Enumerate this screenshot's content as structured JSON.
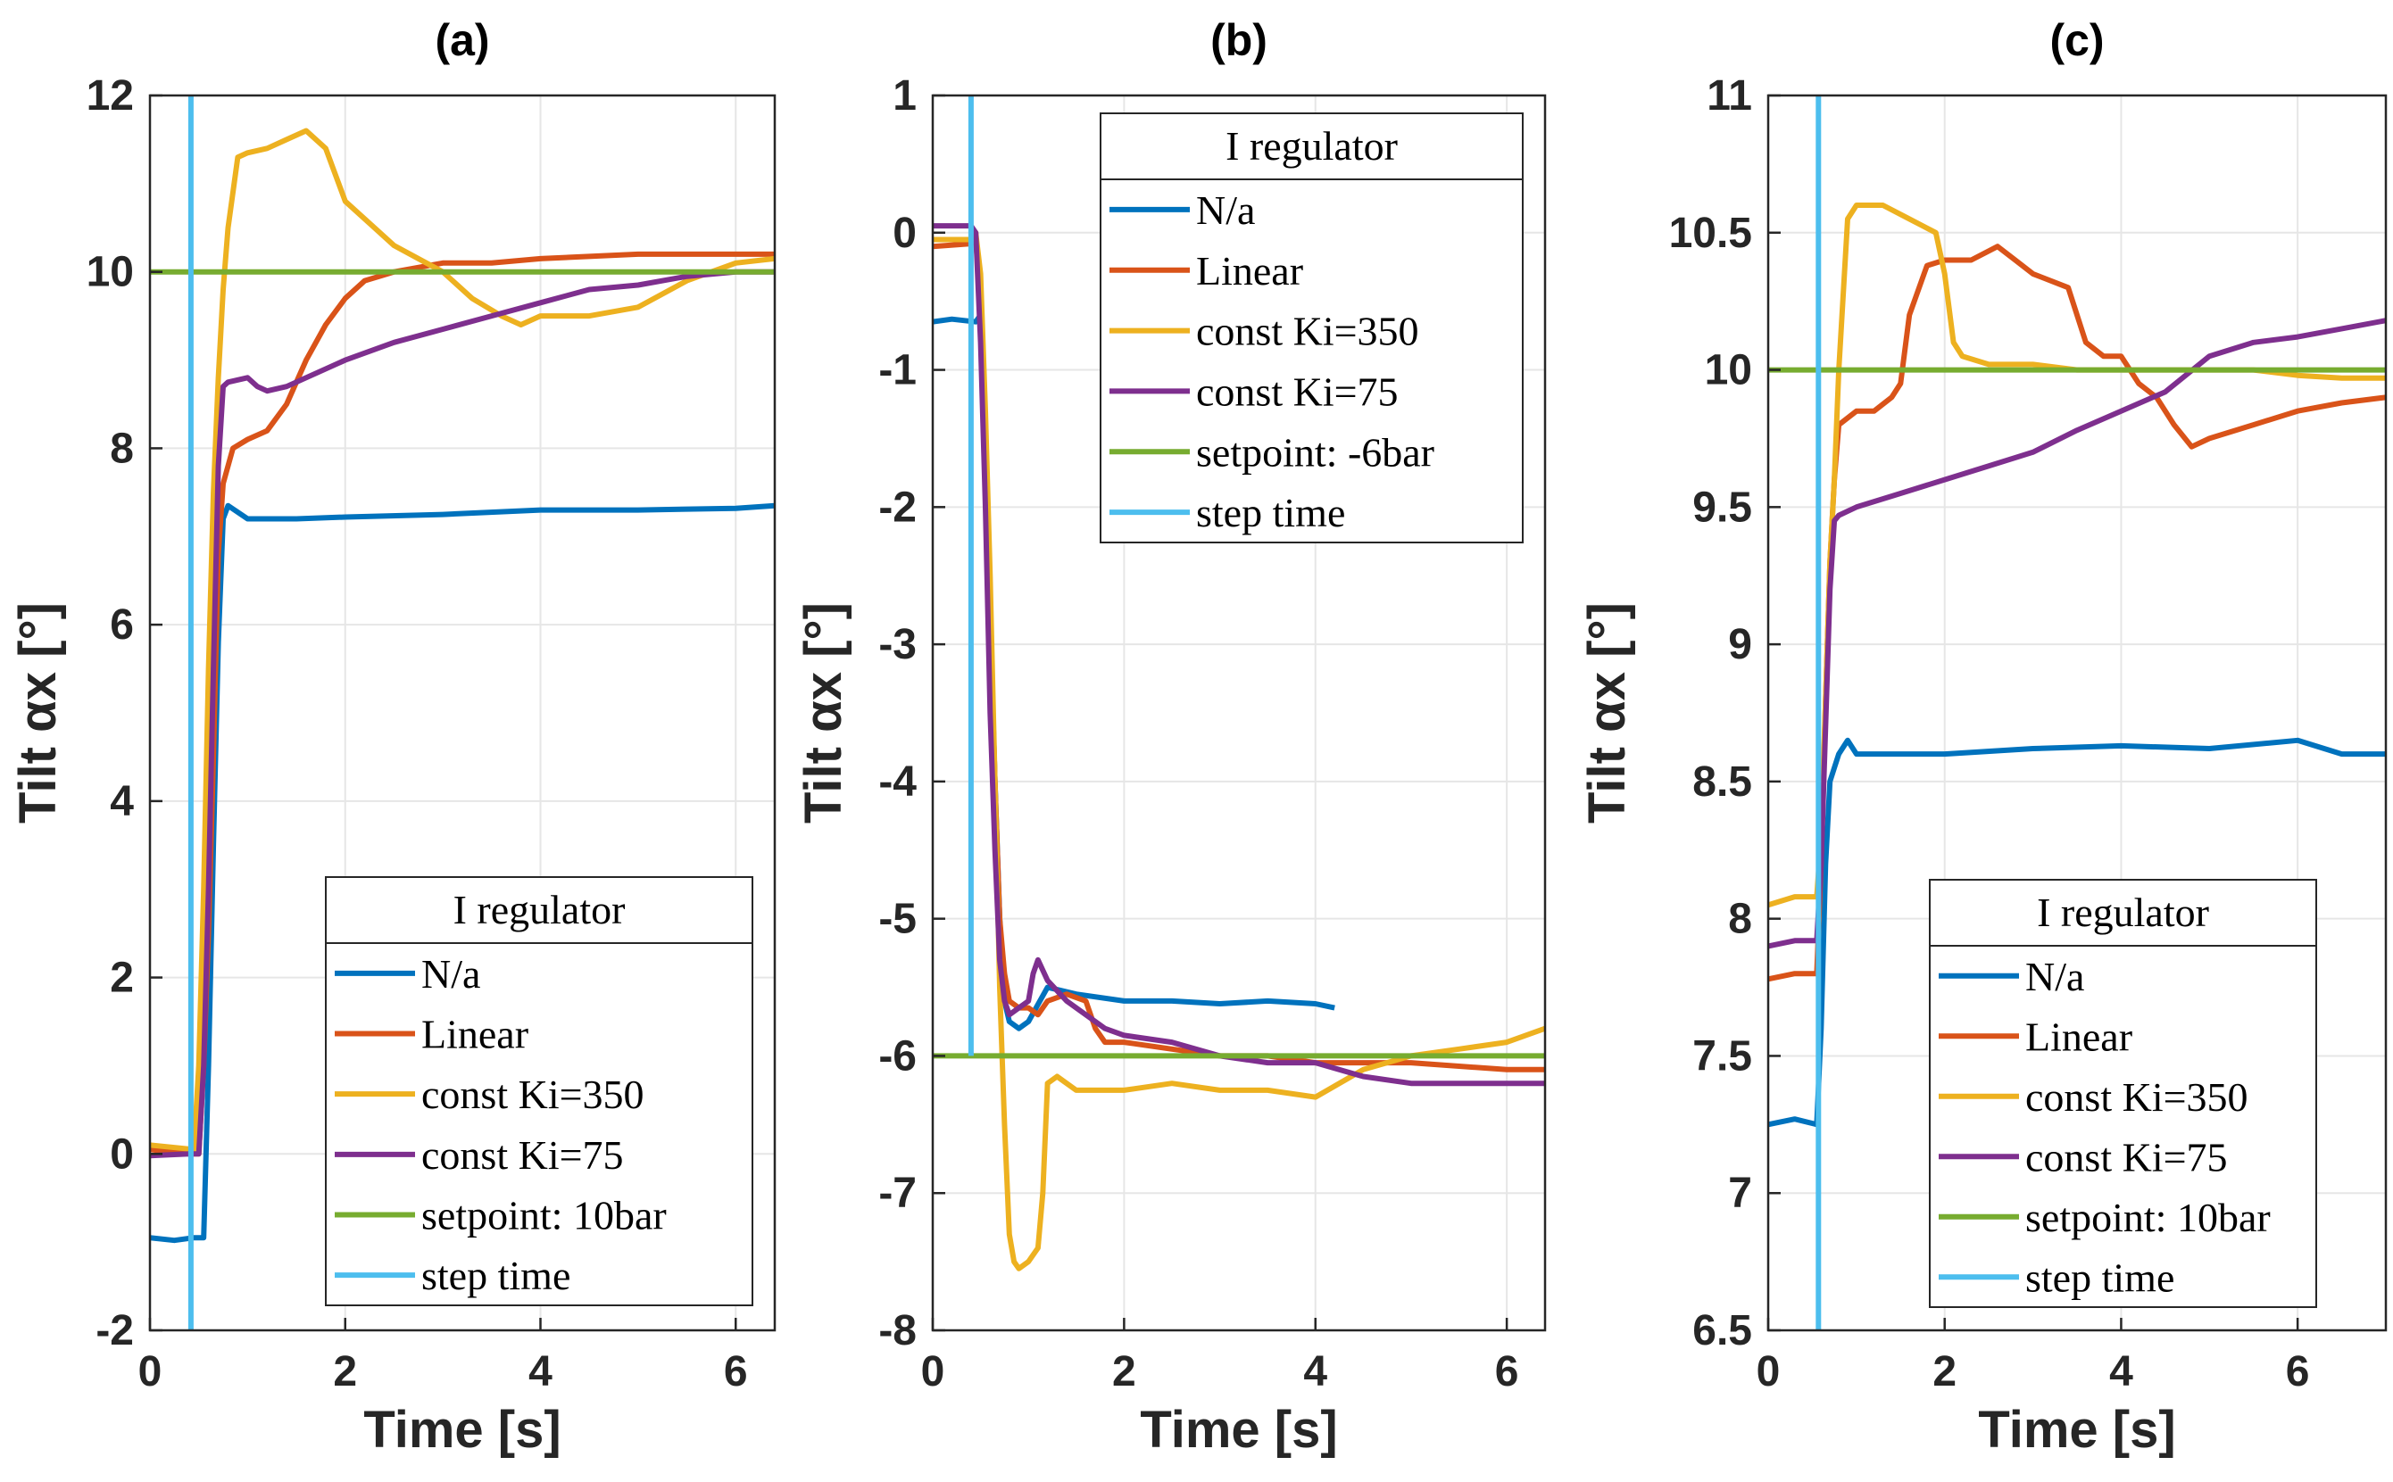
{
  "figure": {
    "colors": {
      "na": "#0072BD",
      "linear": "#D95319",
      "ki350": "#EDB120",
      "ki75": "#7E2F8E",
      "setpoint": "#77AC30",
      "step": "#4DBEEE",
      "grid": "#e6e6e6",
      "axis": "#262626"
    }
  },
  "chart_data": [
    {
      "type": "line",
      "title": "(a)",
      "xlabel": "Time [s]",
      "ylabel": "Tilt αx [°]",
      "xlim": [
        0,
        6.4
      ],
      "ylim": [
        -2,
        12
      ],
      "xticks": [
        0,
        2,
        4,
        6
      ],
      "yticks": [
        -2,
        0,
        2,
        4,
        6,
        8,
        10,
        12
      ],
      "xtick_labels": [
        "0",
        "2",
        "4",
        "6"
      ],
      "ytick_labels": [
        "-2",
        "0",
        "2",
        "4",
        "6",
        "8",
        "10",
        "12"
      ],
      "grid": true,
      "legend": {
        "title": "I regulator",
        "location": "bottom-right",
        "entries": [
          "N/a",
          "Linear",
          "const Ki=350",
          "const Ki=75",
          "setpoint: 10bar",
          "step time"
        ]
      },
      "series": [
        {
          "name": "N/a",
          "color_key": "na",
          "x": [
            0,
            0.25,
            0.45,
            0.55,
            0.6,
            0.65,
            0.7,
            0.75,
            0.8,
            1.0,
            1.5,
            2.0,
            3.0,
            4.0,
            5.0,
            6.0,
            6.4
          ],
          "y": [
            -0.95,
            -0.98,
            -0.95,
            -0.95,
            1.0,
            3.5,
            5.8,
            7.2,
            7.35,
            7.2,
            7.2,
            7.22,
            7.25,
            7.3,
            7.3,
            7.32,
            7.35
          ]
        },
        {
          "name": "Linear",
          "color_key": "linear",
          "x": [
            0,
            0.4,
            0.5,
            0.55,
            0.6,
            0.65,
            0.7,
            0.75,
            0.85,
            1.0,
            1.2,
            1.4,
            1.6,
            1.8,
            2.0,
            2.2,
            2.5,
            3.0,
            3.5,
            4.0,
            5.0,
            6.0,
            6.4
          ],
          "y": [
            0.05,
            0.0,
            0.0,
            1.0,
            2.5,
            4.5,
            6.8,
            7.6,
            8.0,
            8.1,
            8.2,
            8.5,
            9.0,
            9.4,
            9.7,
            9.9,
            10.0,
            10.1,
            10.1,
            10.15,
            10.2,
            10.2,
            10.2
          ]
        },
        {
          "name": "const Ki=350",
          "color_key": "ki350",
          "x": [
            0,
            0.45,
            0.5,
            0.55,
            0.6,
            0.65,
            0.7,
            0.75,
            0.8,
            0.9,
            1.0,
            1.2,
            1.4,
            1.6,
            1.8,
            2.0,
            2.5,
            3.0,
            3.3,
            3.6,
            3.8,
            4.0,
            4.5,
            5.0,
            5.5,
            6.0,
            6.4
          ],
          "y": [
            0.1,
            0.05,
            1.0,
            3.0,
            5.5,
            7.5,
            8.8,
            9.8,
            10.5,
            11.3,
            11.35,
            11.4,
            11.5,
            11.6,
            11.4,
            10.8,
            10.3,
            10.0,
            9.7,
            9.5,
            9.4,
            9.5,
            9.5,
            9.6,
            9.9,
            10.1,
            10.15
          ]
        },
        {
          "name": "const Ki=75",
          "color_key": "ki75",
          "x": [
            0,
            0.4,
            0.5,
            0.55,
            0.6,
            0.65,
            0.7,
            0.75,
            0.8,
            1.0,
            1.1,
            1.2,
            1.4,
            1.6,
            2.0,
            2.5,
            3.0,
            3.5,
            4.0,
            4.5,
            5.0,
            5.5,
            6.0,
            6.4
          ],
          "y": [
            -0.02,
            0.0,
            0.0,
            1.0,
            3.0,
            5.5,
            7.8,
            8.7,
            8.75,
            8.8,
            8.7,
            8.65,
            8.7,
            8.8,
            9.0,
            9.2,
            9.35,
            9.5,
            9.65,
            9.8,
            9.85,
            9.95,
            10.0,
            10.0
          ]
        },
        {
          "name": "setpoint: 10bar",
          "color_key": "setpoint",
          "x": [
            0,
            6.4
          ],
          "y": [
            10,
            10
          ]
        },
        {
          "name": "step time",
          "color_key": "step",
          "x": [
            0.42,
            0.42
          ],
          "y": [
            -2,
            12
          ]
        }
      ]
    },
    {
      "type": "line",
      "title": "(b)",
      "xlabel": "Time [s]",
      "ylabel": "Tilt αx [°]",
      "xlim": [
        0,
        6.4
      ],
      "ylim": [
        -8,
        1
      ],
      "xticks": [
        0,
        2,
        4,
        6
      ],
      "yticks": [
        -8,
        -7,
        -6,
        -5,
        -4,
        -3,
        -2,
        -1,
        0,
        1
      ],
      "xtick_labels": [
        "0",
        "2",
        "4",
        "6"
      ],
      "ytick_labels": [
        "-8",
        "-7",
        "-6",
        "-5",
        "-4",
        "-3",
        "-2",
        "-1",
        "0",
        "1"
      ],
      "grid": true,
      "legend": {
        "title": "I regulator",
        "location": "top-right",
        "entries": [
          "N/a",
          "Linear",
          "const Ki=350",
          "const Ki=75",
          "setpoint: -6bar",
          "step time"
        ]
      },
      "series": [
        {
          "name": "N/a",
          "color_key": "na",
          "x": [
            0,
            0.2,
            0.45,
            0.5,
            0.55,
            0.6,
            0.65,
            0.7,
            0.75,
            0.8,
            0.9,
            1.0,
            1.2,
            1.5,
            2.0,
            2.5,
            3.0,
            3.5,
            4.0,
            4.2
          ],
          "y": [
            -0.65,
            -0.63,
            -0.65,
            -0.6,
            -1.5,
            -2.8,
            -4.0,
            -5.0,
            -5.6,
            -5.75,
            -5.8,
            -5.75,
            -5.5,
            -5.55,
            -5.6,
            -5.6,
            -5.62,
            -5.6,
            -5.62,
            -5.65
          ]
        },
        {
          "name": "Linear",
          "color_key": "linear",
          "x": [
            0,
            0.4,
            0.45,
            0.5,
            0.55,
            0.6,
            0.65,
            0.7,
            0.75,
            0.8,
            0.9,
            1.0,
            1.1,
            1.2,
            1.4,
            1.6,
            1.7,
            1.8,
            2.0,
            2.5,
            3.0,
            3.5,
            4.0,
            5.0,
            6.0,
            6.4
          ],
          "y": [
            -0.1,
            -0.08,
            -0.05,
            -0.5,
            -1.5,
            -2.8,
            -4.0,
            -5.0,
            -5.4,
            -5.6,
            -5.65,
            -5.65,
            -5.7,
            -5.6,
            -5.55,
            -5.6,
            -5.8,
            -5.9,
            -5.9,
            -5.95,
            -6.0,
            -6.0,
            -6.05,
            -6.05,
            -6.1,
            -6.1
          ]
        },
        {
          "name": "const Ki=350",
          "color_key": "ki350",
          "x": [
            0,
            0.4,
            0.45,
            0.5,
            0.55,
            0.6,
            0.65,
            0.7,
            0.75,
            0.8,
            0.85,
            0.9,
            1.0,
            1.1,
            1.15,
            1.2,
            1.3,
            1.5,
            2.0,
            2.5,
            3.0,
            3.5,
            4.0,
            4.5,
            5.0,
            5.5,
            6.0,
            6.4
          ],
          "y": [
            -0.05,
            -0.05,
            0.0,
            -0.3,
            -1.3,
            -2.5,
            -4.0,
            -5.5,
            -6.5,
            -7.3,
            -7.5,
            -7.55,
            -7.5,
            -7.4,
            -7.0,
            -6.2,
            -6.15,
            -6.25,
            -6.25,
            -6.2,
            -6.25,
            -6.25,
            -6.3,
            -6.1,
            -6.0,
            -5.95,
            -5.9,
            -5.8
          ]
        },
        {
          "name": "const Ki=75",
          "color_key": "ki75",
          "x": [
            0,
            0.4,
            0.45,
            0.5,
            0.55,
            0.6,
            0.65,
            0.7,
            0.75,
            0.8,
            0.9,
            1.0,
            1.05,
            1.1,
            1.2,
            1.4,
            1.6,
            1.8,
            2.0,
            2.5,
            3.0,
            3.5,
            4.0,
            4.5,
            5.0,
            5.5,
            6.0,
            6.4
          ],
          "y": [
            0.05,
            0.05,
            0.0,
            -0.8,
            -2.0,
            -3.5,
            -4.5,
            -5.3,
            -5.6,
            -5.7,
            -5.65,
            -5.6,
            -5.4,
            -5.3,
            -5.45,
            -5.6,
            -5.7,
            -5.8,
            -5.85,
            -5.9,
            -6.0,
            -6.05,
            -6.05,
            -6.15,
            -6.2,
            -6.2,
            -6.2,
            -6.2
          ]
        },
        {
          "name": "setpoint: -6bar",
          "color_key": "setpoint",
          "x": [
            0,
            6.4
          ],
          "y": [
            -6,
            -6
          ]
        },
        {
          "name": "step time",
          "color_key": "step",
          "x": [
            0.4,
            0.4
          ],
          "y": [
            -6,
            1
          ]
        }
      ]
    },
    {
      "type": "line",
      "title": "(c)",
      "xlabel": "Time [s]",
      "ylabel": "Tilt αx [°]",
      "xlim": [
        0,
        7
      ],
      "ylim": [
        6.5,
        11
      ],
      "xticks": [
        0,
        2,
        4,
        6
      ],
      "yticks": [
        6.5,
        7,
        7.5,
        8,
        8.5,
        9,
        9.5,
        10,
        10.5,
        11
      ],
      "xtick_labels": [
        "0",
        "2",
        "4",
        "6"
      ],
      "ytick_labels": [
        "6.5",
        "7",
        "7.5",
        "8",
        "8.5",
        "9",
        "9.5",
        "10",
        "10.5",
        "11"
      ],
      "grid": true,
      "legend": {
        "title": "I regulator",
        "location": "bottom-right",
        "entries": [
          "N/a",
          "Linear",
          "const Ki=350",
          "const Ki=75",
          "setpoint: 10bar",
          "step time"
        ]
      },
      "series": [
        {
          "name": "N/a",
          "color_key": "na",
          "x": [
            0,
            0.3,
            0.55,
            0.6,
            0.65,
            0.7,
            0.75,
            0.8,
            0.9,
            1.0,
            1.5,
            2.0,
            3.0,
            4.0,
            5.0,
            6.0,
            6.5,
            7.0
          ],
          "y": [
            7.25,
            7.27,
            7.25,
            7.6,
            8.2,
            8.5,
            8.55,
            8.6,
            8.65,
            8.6,
            8.6,
            8.6,
            8.62,
            8.63,
            8.62,
            8.65,
            8.6,
            8.6
          ]
        },
        {
          "name": "Linear",
          "color_key": "linear",
          "x": [
            0,
            0.3,
            0.55,
            0.6,
            0.65,
            0.7,
            0.75,
            0.8,
            1.0,
            1.2,
            1.4,
            1.5,
            1.6,
            1.8,
            2.0,
            2.3,
            2.6,
            2.8,
            3.0,
            3.4,
            3.6,
            3.8,
            4.0,
            4.2,
            4.4,
            4.6,
            4.8,
            5.0,
            5.5,
            6.0,
            6.5,
            7.0
          ],
          "y": [
            7.78,
            7.8,
            7.8,
            8.2,
            8.8,
            9.3,
            9.6,
            9.8,
            9.85,
            9.85,
            9.9,
            9.95,
            10.2,
            10.38,
            10.4,
            10.4,
            10.45,
            10.4,
            10.35,
            10.3,
            10.1,
            10.05,
            10.05,
            9.95,
            9.9,
            9.8,
            9.72,
            9.75,
            9.8,
            9.85,
            9.88,
            9.9
          ]
        },
        {
          "name": "const Ki=350",
          "color_key": "ki350",
          "x": [
            0,
            0.3,
            0.55,
            0.6,
            0.65,
            0.7,
            0.75,
            0.8,
            0.9,
            1.0,
            1.3,
            1.6,
            1.9,
            2.0,
            2.1,
            2.2,
            2.5,
            3.0,
            3.5,
            4.0,
            4.5,
            5.0,
            5.5,
            6.0,
            6.5,
            7.0
          ],
          "y": [
            8.05,
            8.08,
            8.08,
            8.3,
            8.8,
            9.3,
            9.6,
            10.0,
            10.55,
            10.6,
            10.6,
            10.55,
            10.5,
            10.35,
            10.1,
            10.05,
            10.02,
            10.02,
            10.0,
            10.0,
            10.0,
            10.0,
            10.0,
            9.98,
            9.97,
            9.97
          ]
        },
        {
          "name": "const Ki=75",
          "color_key": "ki75",
          "x": [
            0,
            0.3,
            0.55,
            0.6,
            0.65,
            0.7,
            0.75,
            0.8,
            1.0,
            1.5,
            2.0,
            2.5,
            3.0,
            3.5,
            4.0,
            4.5,
            5.0,
            5.5,
            6.0,
            6.5,
            7.0
          ],
          "y": [
            7.9,
            7.92,
            7.92,
            8.2,
            8.7,
            9.2,
            9.45,
            9.47,
            9.5,
            9.55,
            9.6,
            9.65,
            9.7,
            9.78,
            9.85,
            9.92,
            10.05,
            10.1,
            10.12,
            10.15,
            10.18
          ]
        },
        {
          "name": "setpoint: 10bar",
          "color_key": "setpoint",
          "x": [
            0,
            7
          ],
          "y": [
            10,
            10
          ]
        },
        {
          "name": "step time",
          "color_key": "step",
          "x": [
            0.57,
            0.57
          ],
          "y": [
            6.5,
            11
          ]
        }
      ]
    }
  ]
}
